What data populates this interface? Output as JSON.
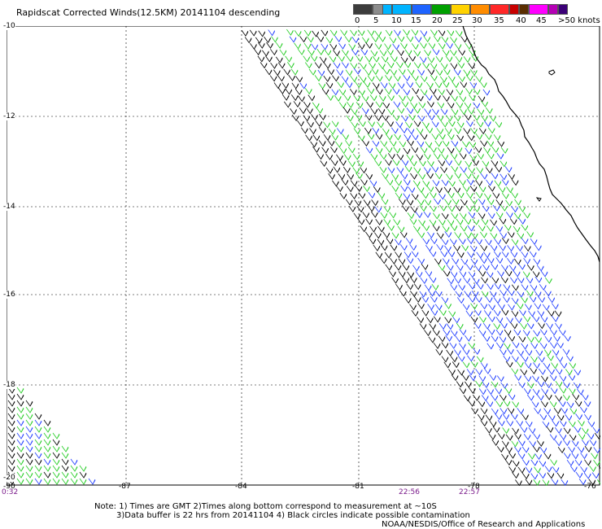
{
  "title": "Rapidscat Corrected Winds(12.5KM) 20141104 descending",
  "legend": {
    "colors": [
      "#3c3c3c",
      "#8c8c8c",
      "#00b4ff",
      "#1e64ff",
      "#00a000",
      "#28dc28",
      "#ffd200",
      "#ff8c00",
      "#ff2828",
      "#c80000",
      "#5a2d00",
      "#8c5a3c",
      "#ff00ff",
      "#b400b4",
      "#3c0078"
    ],
    "labels": [
      "0",
      "5",
      "10",
      "15",
      "20",
      "25",
      "30",
      "35",
      "40",
      "45",
      ">50 knots"
    ]
  },
  "axes": {
    "y_labels": [
      "-10",
      "-12",
      "-14",
      "-16",
      "-18",
      "-20"
    ],
    "x_labels": [
      "-90",
      "-87",
      "-84",
      "-81",
      "-78",
      "-76"
    ]
  },
  "times": [
    "0:32",
    "22:56",
    "22:57"
  ],
  "notes": [
    "Note: 1) Times are GMT 2)Times along bottom correspond to measurement at ~10S",
    "3)Data buffer is 22 hrs from 20141104 4) Black circles indicate possible contamination",
    "NOAA/NESDIS/Office of Research and Applications"
  ]
}
